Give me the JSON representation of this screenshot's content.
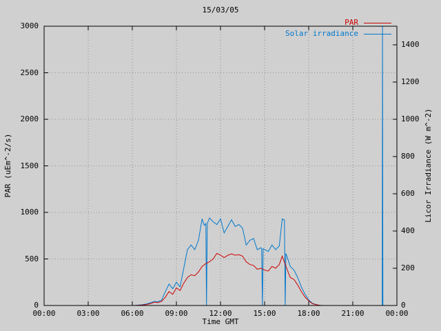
{
  "chart_data": {
    "type": "line",
    "title": "15/03/05",
    "xlabel": "Time GMT",
    "ylabel_left": "PAR (uEm^-2/s)",
    "ylabel_right": "Licor Irradiance (W m^-2)",
    "grid": true,
    "legend_position": "top-right-inside",
    "background_color": "#d0d0d0",
    "x_ticks": {
      "hours": [
        0,
        3,
        6,
        9,
        12,
        15,
        18,
        21,
        24
      ],
      "labels": [
        "00:00",
        "03:00",
        "06:00",
        "09:00",
        "12:00",
        "15:00",
        "18:00",
        "21:00",
        "00:00"
      ]
    },
    "y_left": {
      "range": [
        0,
        3000
      ],
      "ticks": [
        0,
        500,
        1000,
        1500,
        2000,
        2500,
        3000
      ]
    },
    "y_right": {
      "range": [
        0,
        1500
      ],
      "ticks": [
        0,
        200,
        400,
        600,
        800,
        1000,
        1200,
        1400
      ]
    },
    "series": [
      {
        "name": "PAR",
        "color": "#cc0000",
        "axis": "left",
        "units": "uEm^-2/s",
        "x": [
          0,
          3,
          5.75,
          6,
          6.25,
          6.5,
          6.75,
          7,
          7.25,
          7.5,
          7.75,
          8,
          8.25,
          8.5,
          8.75,
          9,
          9.25,
          9.5,
          9.75,
          10,
          10.25,
          10.5,
          10.75,
          11,
          11.25,
          11.5,
          11.75,
          12,
          12.25,
          12.5,
          12.75,
          13,
          13.25,
          13.5,
          13.75,
          14,
          14.25,
          14.5,
          14.75,
          15,
          15.25,
          15.5,
          15.75,
          16,
          16.2,
          16.5,
          16.75,
          17,
          17.25,
          17.5,
          17.75,
          18,
          18.25,
          18.5,
          18.75,
          19,
          21,
          24
        ],
        "y": [
          0,
          0,
          0,
          0,
          1,
          3,
          6,
          12,
          20,
          35,
          30,
          45,
          90,
          150,
          120,
          190,
          160,
          240,
          300,
          330,
          320,
          360,
          420,
          450,
          470,
          500,
          560,
          540,
          515,
          540,
          555,
          540,
          545,
          530,
          470,
          440,
          430,
          390,
          400,
          380,
          370,
          420,
          400,
          440,
          530,
          400,
          300,
          280,
          220,
          150,
          90,
          50,
          20,
          8,
          2,
          0,
          0,
          0
        ]
      },
      {
        "name": "Solar irradiance",
        "color": "#0077cc",
        "axis": "right",
        "units": "W m^-2",
        "x": [
          0,
          3,
          5.75,
          6,
          6.25,
          6.5,
          6.75,
          7,
          7.25,
          7.5,
          7.75,
          8,
          8.25,
          8.5,
          8.75,
          9,
          9.25,
          9.5,
          9.75,
          10,
          10.25,
          10.5,
          10.75,
          10.9,
          11,
          11.05,
          11.1,
          11.25,
          11.5,
          11.75,
          12,
          12.25,
          12.5,
          12.75,
          13,
          13.25,
          13.5,
          13.75,
          14,
          14.25,
          14.5,
          14.75,
          14.8,
          14.85,
          14.9,
          15,
          15.25,
          15.5,
          15.75,
          16,
          16.2,
          16.3,
          16.35,
          16.4,
          16.45,
          16.75,
          17,
          17.25,
          17.5,
          17.75,
          18,
          18.25,
          18.5,
          18.75,
          19,
          21,
          22.98,
          23,
          23.02,
          23.05,
          24
        ],
        "y": [
          0,
          0,
          0,
          0,
          1,
          3,
          5,
          9,
          15,
          22,
          20,
          30,
          75,
          115,
          90,
          125,
          100,
          200,
          300,
          325,
          300,
          350,
          465,
          430,
          440,
          0,
          440,
          470,
          450,
          435,
          465,
          390,
          425,
          460,
          425,
          435,
          415,
          325,
          350,
          360,
          300,
          310,
          305,
          0,
          305,
          300,
          290,
          325,
          300,
          320,
          465,
          460,
          460,
          0,
          280,
          210,
          190,
          150,
          100,
          60,
          30,
          12,
          5,
          1,
          0,
          0,
          0,
          0,
          1500,
          0,
          0
        ]
      }
    ]
  }
}
